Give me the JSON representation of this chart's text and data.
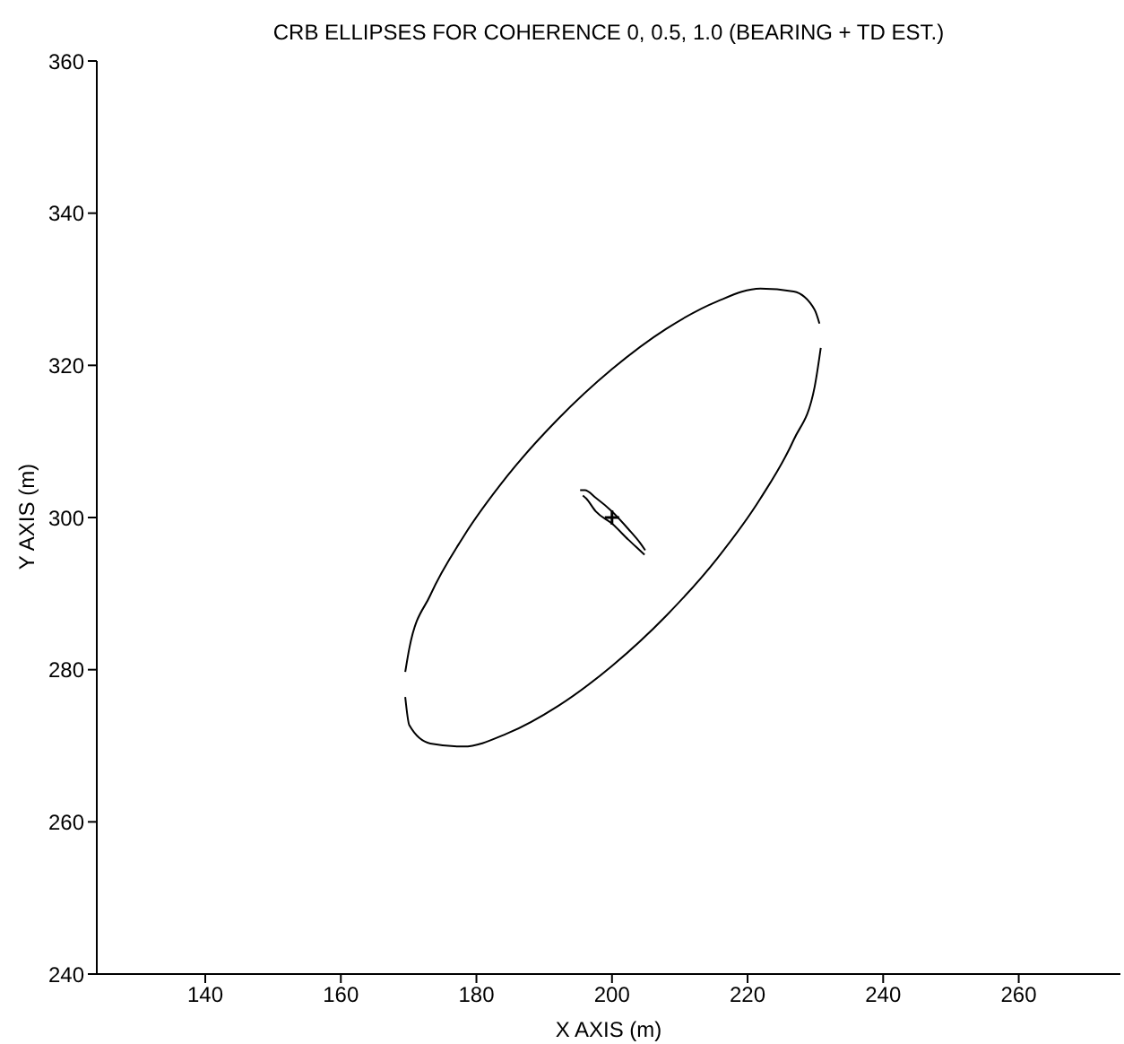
{
  "chart_data": {
    "type": "line",
    "title": "CRB ELLIPSES FOR COHERENCE 0, 0.5, 1.0 (BEARING + TD EST.)",
    "xlabel": "X AXIS (m)",
    "ylabel": "Y AXIS (m)",
    "xlim": [
      124,
      275
    ],
    "xticks": [
      140,
      160,
      180,
      200,
      220,
      240,
      260
    ],
    "ylim": [
      240,
      360
    ],
    "yticks": [
      240,
      260,
      280,
      300,
      320,
      340,
      360
    ],
    "grid": false,
    "legend": false,
    "marker": "none",
    "line_style": "solid",
    "series": [
      {
        "color": "#000000",
        "x": [
          169.5,
          170.1,
          173.2,
          178.1,
          184.5,
          192,
          200,
          208,
          215.5,
          221.9,
          226.8,
          229.9,
          230.6
        ],
        "values": [
          279.7,
          282.8,
          289.8,
          297.5,
          305.4,
          312.9,
          319.5,
          324.8,
          328.4,
          330.1,
          329.7,
          327.3,
          325.5
        ]
      },
      {
        "color": "#000000",
        "x": [
          169.5,
          170.1,
          173.2,
          178.1,
          184.5,
          192,
          200,
          208,
          215.5,
          221.9,
          226.8,
          229.9,
          230.8
        ],
        "values": [
          276.4,
          272.7,
          270.3,
          269.9,
          271.6,
          275.2,
          280.5,
          287.1,
          294.6,
          302.5,
          310.2,
          317.2,
          322.3
        ]
      },
      {
        "color": "#000000",
        "x": [
          195.3,
          196,
          197.6,
          200,
          202.4,
          204.2,
          204.9
        ],
        "values": [
          303.6,
          303.6,
          302.6,
          300.8,
          298.5,
          296.6,
          295.7
        ]
      },
      {
        "color": "#000000",
        "x": [
          195.7,
          196.2,
          197.6,
          200,
          202.4,
          204.2,
          204.8
        ],
        "values": [
          302.9,
          302.5,
          300.8,
          299.2,
          297.1,
          295.6,
          295.1
        ]
      },
      {
        "type": "scatter",
        "marker": "cross",
        "color": "#000000",
        "x": [
          200
        ],
        "values": [
          300
        ]
      }
    ]
  }
}
